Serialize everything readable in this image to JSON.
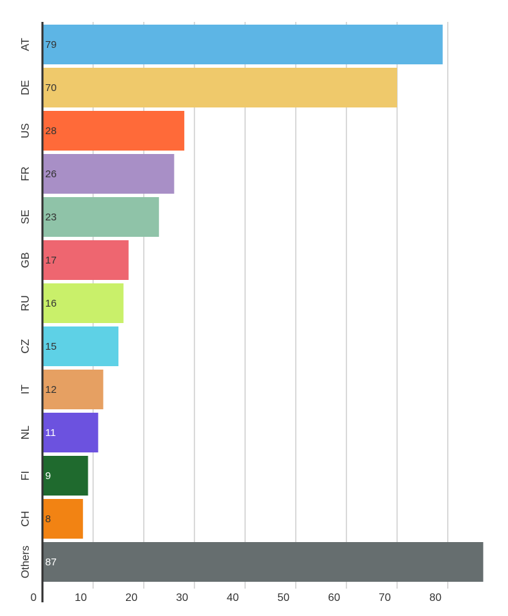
{
  "chart_data": {
    "type": "bar",
    "orientation": "horizontal",
    "categories": [
      "AT",
      "DE",
      "US",
      "FR",
      "SE",
      "GB",
      "RU",
      "CZ",
      "IT",
      "NL",
      "FI",
      "CH",
      "Others"
    ],
    "values": [
      79,
      70,
      28,
      26,
      23,
      17,
      16,
      15,
      12,
      11,
      9,
      8,
      87
    ],
    "colors": [
      "#5DB5E5",
      "#EFC96B",
      "#FF6A39",
      "#A88FC6",
      "#8FC3A8",
      "#EE6670",
      "#C9F06A",
      "#5ED1E6",
      "#E6A062",
      "#6C52DF",
      "#1F6A2E",
      "#F28313",
      "#666E6F"
    ],
    "label_colors": [
      "#333333",
      "#333333",
      "#333333",
      "#333333",
      "#333333",
      "#333333",
      "#333333",
      "#333333",
      "#333333",
      "#ffffff",
      "#ffffff",
      "#333333",
      "#ffffff"
    ],
    "x_ticks": [
      0,
      10,
      20,
      30,
      40,
      50,
      60,
      70,
      80
    ],
    "xlim": [
      0,
      87.5
    ],
    "grid": true,
    "legend": "none",
    "title": "",
    "xlabel": "",
    "ylabel": ""
  }
}
